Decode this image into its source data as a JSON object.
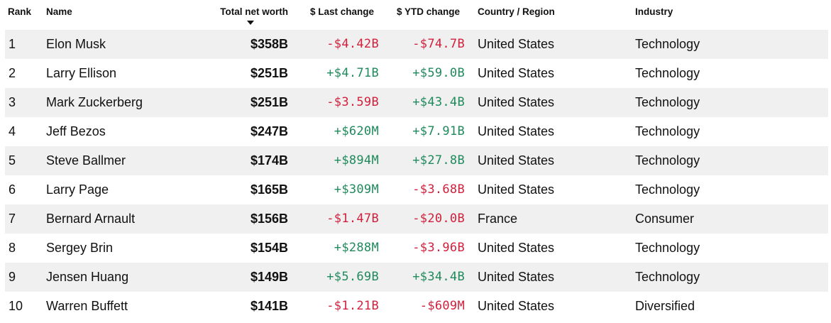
{
  "columns": {
    "rank": "Rank",
    "name": "Name",
    "net_worth": "Total net worth",
    "last_change": "$ Last change",
    "ytd_change": "$ YTD change",
    "country": "Country / Region",
    "industry": "Industry"
  },
  "sort_icon": "sort-descending-icon",
  "colors": {
    "negative": "#d21f3c",
    "positive": "#1f8a5b",
    "row_shade": "#f0f0f0"
  },
  "rows": [
    {
      "rank": "1",
      "name": "Elon Musk",
      "net_worth": "$358B",
      "last_change": "-$4.42B",
      "ytd_change": "-$74.7B",
      "country": "United States",
      "industry": "Technology"
    },
    {
      "rank": "2",
      "name": "Larry Ellison",
      "net_worth": "$251B",
      "last_change": "+$4.71B",
      "ytd_change": "+$59.0B",
      "country": "United States",
      "industry": "Technology"
    },
    {
      "rank": "3",
      "name": "Mark Zuckerberg",
      "net_worth": "$251B",
      "last_change": "-$3.59B",
      "ytd_change": "+$43.4B",
      "country": "United States",
      "industry": "Technology"
    },
    {
      "rank": "4",
      "name": "Jeff Bezos",
      "net_worth": "$247B",
      "last_change": "+$620M",
      "ytd_change": "+$7.91B",
      "country": "United States",
      "industry": "Technology"
    },
    {
      "rank": "5",
      "name": "Steve Ballmer",
      "net_worth": "$174B",
      "last_change": "+$894M",
      "ytd_change": "+$27.8B",
      "country": "United States",
      "industry": "Technology"
    },
    {
      "rank": "6",
      "name": "Larry Page",
      "net_worth": "$165B",
      "last_change": "+$309M",
      "ytd_change": "-$3.68B",
      "country": "United States",
      "industry": "Technology"
    },
    {
      "rank": "7",
      "name": "Bernard Arnault",
      "net_worth": "$156B",
      "last_change": "-$1.47B",
      "ytd_change": "-$20.0B",
      "country": "France",
      "industry": "Consumer"
    },
    {
      "rank": "8",
      "name": "Sergey Brin",
      "net_worth": "$154B",
      "last_change": "+$288M",
      "ytd_change": "-$3.96B",
      "country": "United States",
      "industry": "Technology"
    },
    {
      "rank": "9",
      "name": "Jensen Huang",
      "net_worth": "$149B",
      "last_change": "+$5.69B",
      "ytd_change": "+$34.4B",
      "country": "United States",
      "industry": "Technology"
    },
    {
      "rank": "10",
      "name": "Warren Buffett",
      "net_worth": "$141B",
      "last_change": "-$1.21B",
      "ytd_change": "-$609M",
      "country": "United States",
      "industry": "Diversified"
    }
  ]
}
